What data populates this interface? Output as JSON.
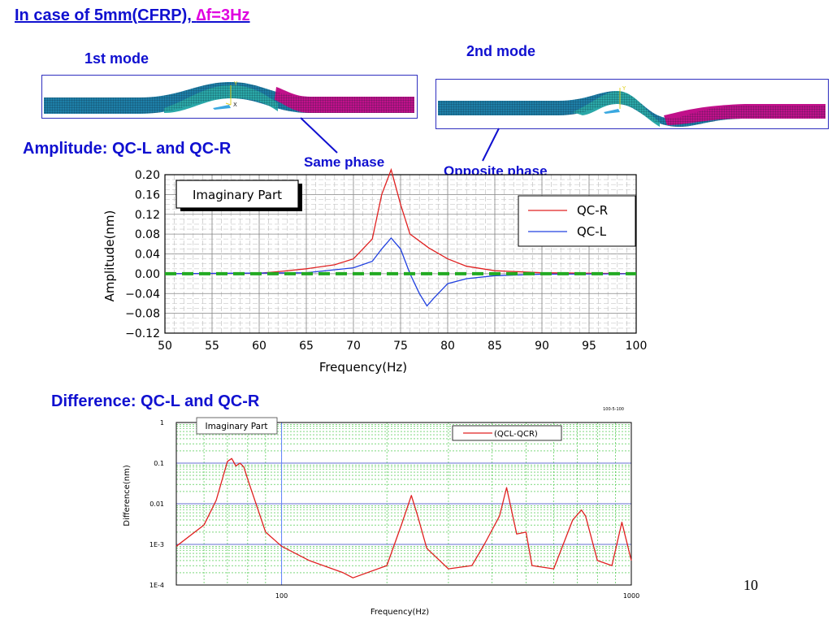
{
  "slide": {
    "title_main": "In case of 5mm(CFRP), ",
    "title_sub": "∆f=3Hz",
    "mode1_label": "1st mode",
    "mode2_label": "2nd mode",
    "mode_axis_y": "Y",
    "mode_axis_x": "X",
    "section_amplitude": "Amplitude: QC-L and QC-R",
    "section_difference": "Difference: QC-L and QC-R",
    "same_phase": "Same phase",
    "opposite_phase": "Opposite phase",
    "page_number": "10",
    "colors": {
      "title": "#1010d0",
      "subtitle": "#e000e0",
      "pipe_left": "#1e7fa8",
      "pipe_mid": "#2aa8a8",
      "pipe_right": "#c0108a"
    }
  },
  "chart_data": [
    {
      "type": "line",
      "box_label": "Imaginary Part",
      "xlabel": "Frequency(Hz)",
      "ylabel": "Amplitude(nm)",
      "xlim": [
        50,
        100
      ],
      "ylim": [
        -0.12,
        0.2
      ],
      "x_ticks": [
        50,
        55,
        60,
        65,
        70,
        75,
        80,
        85,
        90,
        95,
        100
      ],
      "x_tick_labels": [
        "50",
        "55",
        "60",
        "65",
        "70",
        "75",
        "80",
        "85",
        "90",
        "95",
        "100"
      ],
      "y_ticks": [
        0.2,
        0.16,
        0.12,
        0.08,
        0.04,
        0.0,
        -0.04,
        -0.08,
        -0.12
      ],
      "y_tick_labels": [
        "0.20",
        "0.16",
        "0.12",
        "0.08",
        "0.04",
        "0.00",
        "−0.04",
        "−0.08",
        "−0.12"
      ],
      "grid": true,
      "legend_position": "top-right",
      "zero_line_color": "#22aa22",
      "series": [
        {
          "name": "QC-R",
          "color": "#e02020",
          "x": [
            50,
            60,
            62,
            65,
            68,
            70,
            72,
            73,
            74,
            75,
            76,
            78,
            80,
            82,
            85,
            90,
            95,
            100
          ],
          "y": [
            0.0,
            0.001,
            0.004,
            0.01,
            0.018,
            0.03,
            0.07,
            0.16,
            0.21,
            0.14,
            0.08,
            0.052,
            0.03,
            0.015,
            0.006,
            0.002,
            0.001,
            0.0
          ]
        },
        {
          "name": "QC-L",
          "color": "#2040e0",
          "x": [
            50,
            65,
            70,
            72,
            73,
            74,
            75,
            76,
            77,
            77.8,
            78.5,
            80,
            82,
            85,
            90,
            100
          ],
          "y": [
            0.0,
            0.002,
            0.012,
            0.025,
            0.05,
            0.072,
            0.05,
            0.0,
            -0.04,
            -0.065,
            -0.05,
            -0.02,
            -0.01,
            -0.004,
            -0.001,
            0.0
          ]
        }
      ]
    },
    {
      "type": "line",
      "corner_label": "100-5-100",
      "box_label": "Imaginary Part",
      "xlabel": "Frequency(Hz)",
      "ylabel": "Difference(nm)",
      "x_scale": "log",
      "y_scale": "log",
      "xlim": [
        50,
        1000
      ],
      "ylim": [
        0.0001,
        1
      ],
      "x_ticks": [
        100,
        1000
      ],
      "x_tick_labels": [
        "100",
        "1000"
      ],
      "y_ticks": [
        1,
        0.1,
        0.01,
        0.001,
        0.0001
      ],
      "y_tick_labels": [
        "1",
        "0.1",
        "0.01",
        "1E-3",
        "1E-4"
      ],
      "grid": true,
      "marker_x": 100,
      "legend_position": "top-right",
      "series": [
        {
          "name": "(QCL-QCR)",
          "color": "#e02020",
          "x": [
            50,
            60,
            65,
            70,
            72,
            74,
            76,
            78,
            80,
            90,
            100,
            120,
            150,
            160,
            200,
            220,
            235,
            245,
            260,
            300,
            350,
            380,
            420,
            440,
            470,
            500,
            520,
            600,
            680,
            720,
            740,
            800,
            880,
            940,
            1000
          ],
          "y": [
            0.0009,
            0.003,
            0.012,
            0.11,
            0.13,
            0.085,
            0.1,
            0.08,
            0.04,
            0.002,
            0.0009,
            0.0004,
            0.0002,
            0.00015,
            0.0003,
            0.003,
            0.016,
            0.005,
            0.0008,
            0.00025,
            0.0003,
            0.001,
            0.005,
            0.025,
            0.0018,
            0.002,
            0.0003,
            0.00025,
            0.004,
            0.007,
            0.005,
            0.0004,
            0.0003,
            0.0035,
            0.0004
          ]
        }
      ]
    }
  ]
}
